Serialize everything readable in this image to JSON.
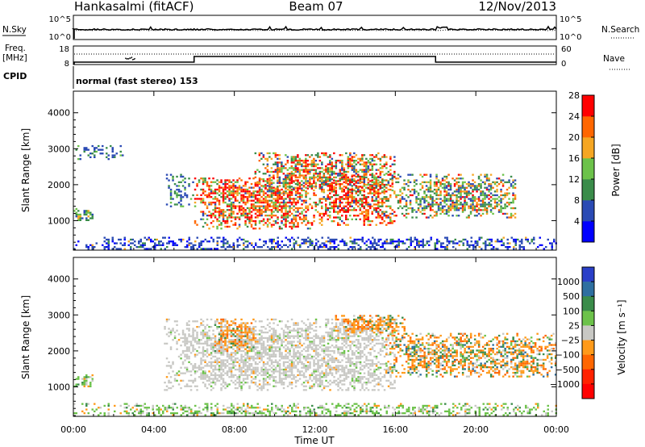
{
  "header": {
    "station": "Hankasalmi (fitACF)",
    "beam": "Beam 07",
    "date": "12/Nov/2013"
  },
  "noise_panel": {
    "left_label": "N.Sky",
    "right_label": "N.Search",
    "ytick_top": "10^5",
    "ytick_bottom": "10^0",
    "series": [
      {
        "name": "N.Sky",
        "style": "solid"
      },
      {
        "name": "N.Search",
        "style": "dotted"
      }
    ]
  },
  "freq_panel": {
    "left_label_1": "Freq.",
    "left_label_2": "[MHz]",
    "ytick_top": "18",
    "ytick_bottom": "8",
    "right_label": "Nave",
    "rtick_top": "60",
    "rtick_bottom": "0",
    "step_times_hours": [
      0.0,
      6.0,
      18.0,
      24.0
    ],
    "freq_levels": [
      "low",
      "high",
      "low"
    ]
  },
  "cpid": {
    "label": "CPID",
    "text": "normal (fast stereo) 153"
  },
  "chart_data": [
    {
      "type": "heatmap",
      "title": "Power",
      "xlabel": "Time UT",
      "ylabel": "Slant Range [km]",
      "xlim_hours": [
        0,
        24
      ],
      "ylim": [
        180,
        4600
      ],
      "xticks": [
        "00:00",
        "04:00",
        "08:00",
        "12:00",
        "16:00",
        "20:00",
        "00:00"
      ],
      "yticks": [
        1000,
        2000,
        3000,
        4000
      ],
      "colorbar_label": "Power [dB]",
      "colorbar_ticks": [
        4,
        8,
        12,
        16,
        20,
        24,
        28
      ],
      "colorbar_colors": [
        "#0000ff",
        "#2a4ab4",
        "#3a8c4a",
        "#6cc24a",
        "#f5a623",
        "#ff6600",
        "#ff0000"
      ],
      "echo_regions": [
        {
          "t0": 0.0,
          "t1": 1.0,
          "r0": 1000,
          "r1": 1350,
          "level": "low-mid"
        },
        {
          "t0": 0.0,
          "t1": 2.5,
          "r0": 2700,
          "r1": 3100,
          "level": "low"
        },
        {
          "t0": 4.5,
          "t1": 6.0,
          "r0": 1400,
          "r1": 2300,
          "level": "low"
        },
        {
          "t0": 6.0,
          "t1": 12.0,
          "r0": 800,
          "r1": 2200,
          "level": "high"
        },
        {
          "t0": 9.0,
          "t1": 16.0,
          "r0": 1800,
          "r1": 2900,
          "level": "mid-high"
        },
        {
          "t0": 12.0,
          "t1": 16.0,
          "r0": 900,
          "r1": 2300,
          "level": "high"
        },
        {
          "t0": 16.0,
          "t1": 22.0,
          "r0": 1100,
          "r1": 2300,
          "level": "mid"
        },
        {
          "t0": 0.0,
          "t1": 24.0,
          "r0": 200,
          "r1": 550,
          "level": "ground"
        }
      ]
    },
    {
      "type": "heatmap",
      "title": "Velocity",
      "xlabel": "Time UT",
      "ylabel": "Slant Range [km]",
      "xlim_hours": [
        0,
        24
      ],
      "ylim": [
        180,
        4600
      ],
      "xticks": [
        "00:00",
        "04:00",
        "08:00",
        "12:00",
        "16:00",
        "20:00",
        "00:00"
      ],
      "yticks": [
        1000,
        2000,
        3000,
        4000
      ],
      "colorbar_label": "Velocity [m s⁻¹]",
      "colorbar_ticks": [
        "1000",
        "500",
        "100",
        "25",
        "−25",
        "−100",
        "−500",
        "−1000"
      ],
      "colorbar_colors": [
        "#2a3fc8",
        "#2e6fa0",
        "#3a8c4a",
        "#6cc24a",
        "#c8c8c4",
        "#ff9a1a",
        "#ff6600",
        "#ff2200",
        "#ff0000"
      ],
      "echo_regions": [
        {
          "t0": 0.0,
          "t1": 1.0,
          "r0": 1000,
          "r1": 1350,
          "level": "ground"
        },
        {
          "t0": 4.5,
          "t1": 16.0,
          "r0": 900,
          "r1": 2900,
          "level": "ground-scatter"
        },
        {
          "t0": 7.0,
          "t1": 9.0,
          "r0": 2000,
          "r1": 2900,
          "level": "negative"
        },
        {
          "t0": 13.0,
          "t1": 16.5,
          "r0": 2500,
          "r1": 3000,
          "level": "negative"
        },
        {
          "t0": 15.5,
          "t1": 24.0,
          "r0": 1300,
          "r1": 2500,
          "level": "mixed"
        },
        {
          "t0": 0.0,
          "t1": 24.0,
          "r0": 200,
          "r1": 550,
          "level": "ground"
        }
      ]
    }
  ]
}
